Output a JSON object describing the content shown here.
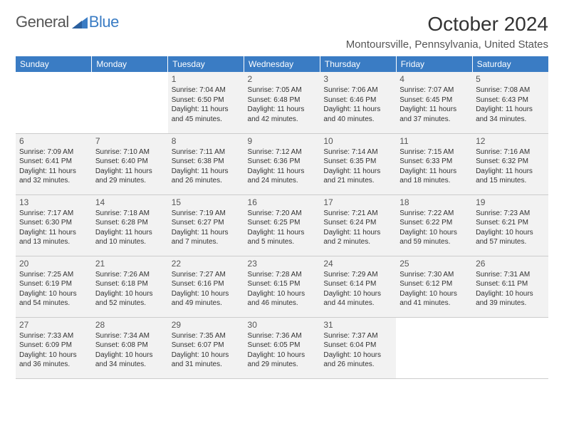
{
  "logo": {
    "word1": "General",
    "word2": "Blue"
  },
  "month_title": "October 2024",
  "location": "Montoursville, Pennsylvania, United States",
  "colors": {
    "header_bg": "#3a7cc4",
    "header_text": "#ffffff",
    "cell_bg": "#f2f2f2",
    "border": "#cccccc",
    "text": "#333333",
    "logo_gray": "#555555",
    "logo_blue": "#3a7cc4"
  },
  "typography": {
    "month_title_fontsize": 28,
    "location_fontsize": 15,
    "dayname_fontsize": 12,
    "daynum_fontsize": 12,
    "cell_fontsize": 10,
    "font_family": "Arial"
  },
  "day_names": [
    "Sunday",
    "Monday",
    "Tuesday",
    "Wednesday",
    "Thursday",
    "Friday",
    "Saturday"
  ],
  "weeks": [
    [
      null,
      null,
      {
        "n": "1",
        "sr": "Sunrise: 7:04 AM",
        "ss": "Sunset: 6:50 PM",
        "dl": "Daylight: 11 hours and 45 minutes."
      },
      {
        "n": "2",
        "sr": "Sunrise: 7:05 AM",
        "ss": "Sunset: 6:48 PM",
        "dl": "Daylight: 11 hours and 42 minutes."
      },
      {
        "n": "3",
        "sr": "Sunrise: 7:06 AM",
        "ss": "Sunset: 6:46 PM",
        "dl": "Daylight: 11 hours and 40 minutes."
      },
      {
        "n": "4",
        "sr": "Sunrise: 7:07 AM",
        "ss": "Sunset: 6:45 PM",
        "dl": "Daylight: 11 hours and 37 minutes."
      },
      {
        "n": "5",
        "sr": "Sunrise: 7:08 AM",
        "ss": "Sunset: 6:43 PM",
        "dl": "Daylight: 11 hours and 34 minutes."
      }
    ],
    [
      {
        "n": "6",
        "sr": "Sunrise: 7:09 AM",
        "ss": "Sunset: 6:41 PM",
        "dl": "Daylight: 11 hours and 32 minutes."
      },
      {
        "n": "7",
        "sr": "Sunrise: 7:10 AM",
        "ss": "Sunset: 6:40 PM",
        "dl": "Daylight: 11 hours and 29 minutes."
      },
      {
        "n": "8",
        "sr": "Sunrise: 7:11 AM",
        "ss": "Sunset: 6:38 PM",
        "dl": "Daylight: 11 hours and 26 minutes."
      },
      {
        "n": "9",
        "sr": "Sunrise: 7:12 AM",
        "ss": "Sunset: 6:36 PM",
        "dl": "Daylight: 11 hours and 24 minutes."
      },
      {
        "n": "10",
        "sr": "Sunrise: 7:14 AM",
        "ss": "Sunset: 6:35 PM",
        "dl": "Daylight: 11 hours and 21 minutes."
      },
      {
        "n": "11",
        "sr": "Sunrise: 7:15 AM",
        "ss": "Sunset: 6:33 PM",
        "dl": "Daylight: 11 hours and 18 minutes."
      },
      {
        "n": "12",
        "sr": "Sunrise: 7:16 AM",
        "ss": "Sunset: 6:32 PM",
        "dl": "Daylight: 11 hours and 15 minutes."
      }
    ],
    [
      {
        "n": "13",
        "sr": "Sunrise: 7:17 AM",
        "ss": "Sunset: 6:30 PM",
        "dl": "Daylight: 11 hours and 13 minutes."
      },
      {
        "n": "14",
        "sr": "Sunrise: 7:18 AM",
        "ss": "Sunset: 6:28 PM",
        "dl": "Daylight: 11 hours and 10 minutes."
      },
      {
        "n": "15",
        "sr": "Sunrise: 7:19 AM",
        "ss": "Sunset: 6:27 PM",
        "dl": "Daylight: 11 hours and 7 minutes."
      },
      {
        "n": "16",
        "sr": "Sunrise: 7:20 AM",
        "ss": "Sunset: 6:25 PM",
        "dl": "Daylight: 11 hours and 5 minutes."
      },
      {
        "n": "17",
        "sr": "Sunrise: 7:21 AM",
        "ss": "Sunset: 6:24 PM",
        "dl": "Daylight: 11 hours and 2 minutes."
      },
      {
        "n": "18",
        "sr": "Sunrise: 7:22 AM",
        "ss": "Sunset: 6:22 PM",
        "dl": "Daylight: 10 hours and 59 minutes."
      },
      {
        "n": "19",
        "sr": "Sunrise: 7:23 AM",
        "ss": "Sunset: 6:21 PM",
        "dl": "Daylight: 10 hours and 57 minutes."
      }
    ],
    [
      {
        "n": "20",
        "sr": "Sunrise: 7:25 AM",
        "ss": "Sunset: 6:19 PM",
        "dl": "Daylight: 10 hours and 54 minutes."
      },
      {
        "n": "21",
        "sr": "Sunrise: 7:26 AM",
        "ss": "Sunset: 6:18 PM",
        "dl": "Daylight: 10 hours and 52 minutes."
      },
      {
        "n": "22",
        "sr": "Sunrise: 7:27 AM",
        "ss": "Sunset: 6:16 PM",
        "dl": "Daylight: 10 hours and 49 minutes."
      },
      {
        "n": "23",
        "sr": "Sunrise: 7:28 AM",
        "ss": "Sunset: 6:15 PM",
        "dl": "Daylight: 10 hours and 46 minutes."
      },
      {
        "n": "24",
        "sr": "Sunrise: 7:29 AM",
        "ss": "Sunset: 6:14 PM",
        "dl": "Daylight: 10 hours and 44 minutes."
      },
      {
        "n": "25",
        "sr": "Sunrise: 7:30 AM",
        "ss": "Sunset: 6:12 PM",
        "dl": "Daylight: 10 hours and 41 minutes."
      },
      {
        "n": "26",
        "sr": "Sunrise: 7:31 AM",
        "ss": "Sunset: 6:11 PM",
        "dl": "Daylight: 10 hours and 39 minutes."
      }
    ],
    [
      {
        "n": "27",
        "sr": "Sunrise: 7:33 AM",
        "ss": "Sunset: 6:09 PM",
        "dl": "Daylight: 10 hours and 36 minutes."
      },
      {
        "n": "28",
        "sr": "Sunrise: 7:34 AM",
        "ss": "Sunset: 6:08 PM",
        "dl": "Daylight: 10 hours and 34 minutes."
      },
      {
        "n": "29",
        "sr": "Sunrise: 7:35 AM",
        "ss": "Sunset: 6:07 PM",
        "dl": "Daylight: 10 hours and 31 minutes."
      },
      {
        "n": "30",
        "sr": "Sunrise: 7:36 AM",
        "ss": "Sunset: 6:05 PM",
        "dl": "Daylight: 10 hours and 29 minutes."
      },
      {
        "n": "31",
        "sr": "Sunrise: 7:37 AM",
        "ss": "Sunset: 6:04 PM",
        "dl": "Daylight: 10 hours and 26 minutes."
      },
      null,
      null
    ]
  ]
}
